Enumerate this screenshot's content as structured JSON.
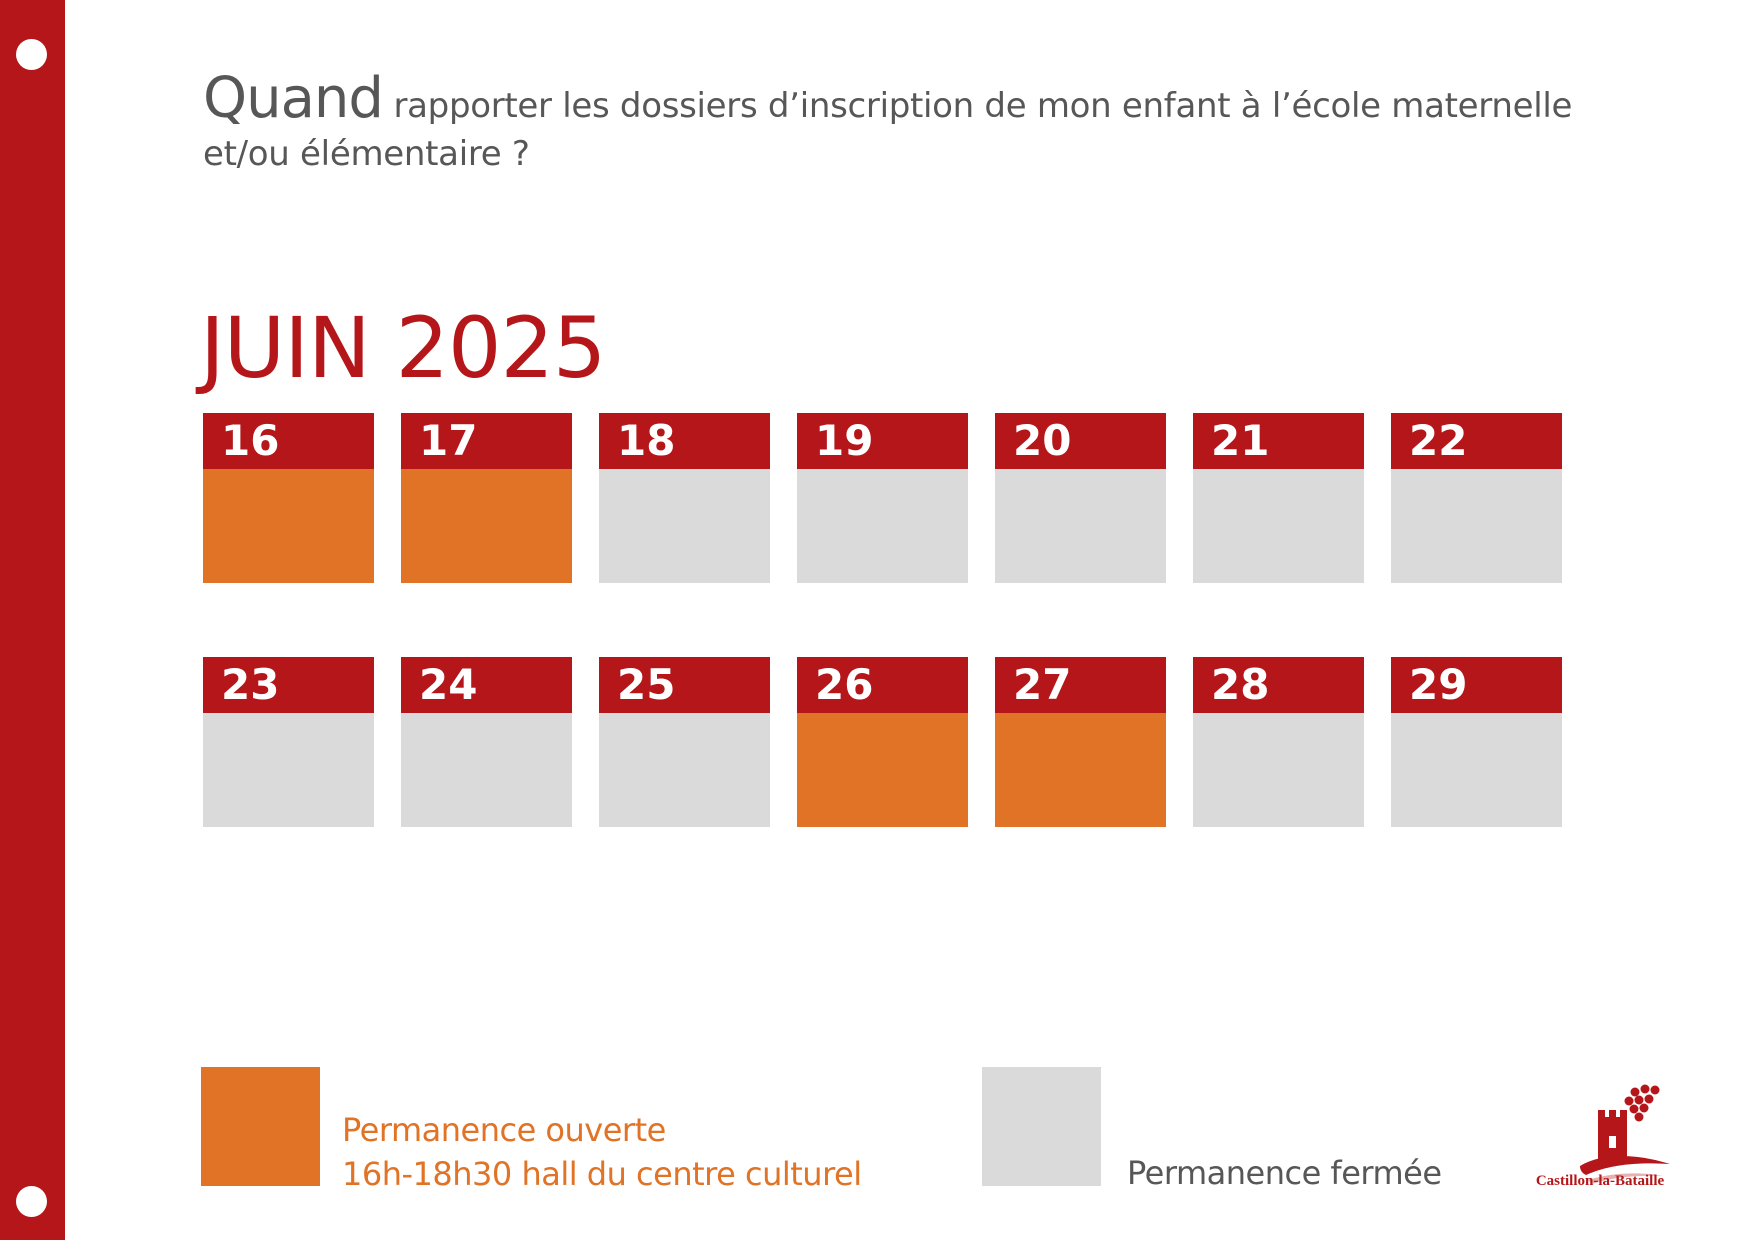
{
  "question": {
    "lead": "Quand",
    "rest_line1": " rapporter les dossiers d’inscription de mon enfant à l’école maternelle",
    "rest_line2": "et/ou élémentaire ?"
  },
  "calendar": {
    "month": "JUIN 2025",
    "weeks": [
      [
        {
          "day": "16",
          "status": "open"
        },
        {
          "day": "17",
          "status": "open"
        },
        {
          "day": "18",
          "status": "closed"
        },
        {
          "day": "19",
          "status": "closed"
        },
        {
          "day": "20",
          "status": "closed"
        },
        {
          "day": "21",
          "status": "closed"
        },
        {
          "day": "22",
          "status": "closed"
        }
      ],
      [
        {
          "day": "23",
          "status": "closed"
        },
        {
          "day": "24",
          "status": "closed"
        },
        {
          "day": "25",
          "status": "closed"
        },
        {
          "day": "26",
          "status": "open"
        },
        {
          "day": "27",
          "status": "open"
        },
        {
          "day": "28",
          "status": "closed"
        },
        {
          "day": "29",
          "status": "closed"
        }
      ]
    ]
  },
  "legend": {
    "open_line1": "Permanence ouverte",
    "open_line2": "16h-18h30 hall du centre culturel",
    "closed": "Permanence fermée"
  },
  "logo": {
    "name": "Castillon-la-Bataille",
    "icon": "castle-grapes-icon"
  },
  "colors": {
    "brand_red": "#b51619",
    "open_orange": "#e07325",
    "closed_gray": "#dadada",
    "text_gray": "#575757"
  }
}
